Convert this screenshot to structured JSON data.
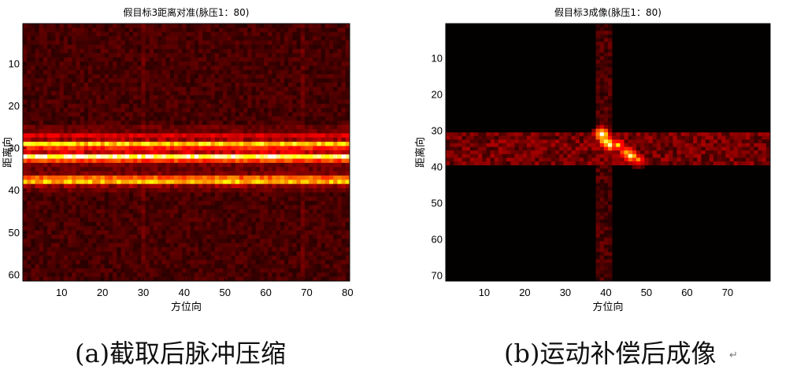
{
  "chart_data": [
    {
      "type": "heatmap",
      "title": "假目标3距离对准(脉压1：80)",
      "xlabel": "方位向",
      "ylabel": "距离向",
      "xlim": [
        0.5,
        80.5
      ],
      "ylim": [
        0.5,
        61.5
      ],
      "xticks": [
        10,
        20,
        30,
        40,
        50,
        60,
        70,
        80
      ],
      "yticks": [
        10,
        20,
        30,
        40,
        50,
        60
      ],
      "colormap": "hot",
      "rows": 61,
      "cols": 80,
      "features": [
        {
          "row": 27,
          "strength": 0.35
        },
        {
          "row": 29,
          "strength": 0.75
        },
        {
          "row": 30,
          "strength": 0.45
        },
        {
          "row": 32,
          "strength": 0.95
        },
        {
          "row": 33,
          "strength": 0.5
        },
        {
          "row": 37,
          "strength": 0.55
        },
        {
          "row": 38,
          "strength": 0.7
        }
      ]
    },
    {
      "type": "heatmap",
      "title": "假目标3成像(脉压1：80)",
      "xlabel": "方位向",
      "ylabel": "距离向",
      "xlim": [
        0.5,
        80.5
      ],
      "ylim": [
        0.5,
        71.5
      ],
      "xticks": [
        10,
        20,
        30,
        40,
        50,
        60,
        70
      ],
      "yticks": [
        10,
        20,
        30,
        40,
        50,
        60,
        70
      ],
      "colormap": "hot",
      "rows": 71,
      "cols": 80,
      "hotspots": [
        {
          "x": 39,
          "y": 31,
          "value": 1.0
        },
        {
          "x": 40,
          "y": 33,
          "value": 0.95
        },
        {
          "x": 41,
          "y": 34,
          "value": 0.85
        },
        {
          "x": 43,
          "y": 34,
          "value": 0.7
        },
        {
          "x": 45,
          "y": 36,
          "value": 0.75
        },
        {
          "x": 46,
          "y": 37,
          "value": 0.9
        },
        {
          "x": 48,
          "y": 38,
          "value": 0.6
        }
      ]
    }
  ],
  "captions": [
    "(a)截取后脉冲压缩",
    "(b)运动补偿后成像"
  ],
  "return_mark": "↵"
}
